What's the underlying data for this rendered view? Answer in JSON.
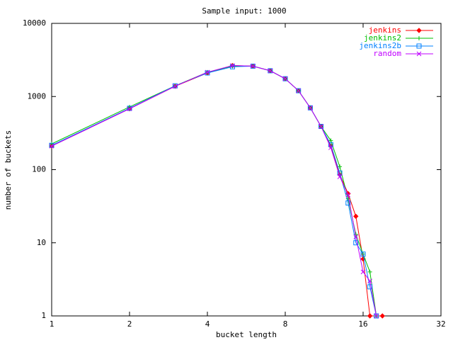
{
  "chart_data": {
    "type": "line",
    "title": "Sample input: 1000",
    "x_label": "bucket length",
    "y_label": "number of buckets",
    "xscale": "log",
    "yscale": "log",
    "xlim": [
      1,
      32
    ],
    "xticks": [
      1,
      2,
      4,
      8,
      16,
      32
    ],
    "ylim": [
      1,
      10000
    ],
    "yticks": [
      1,
      10,
      100,
      1000,
      10000
    ],
    "legend": "top-right",
    "series": [
      {
        "name": "jenkins",
        "color": "#ff0000",
        "marker": "diamond",
        "x": [
          1,
          2,
          3,
          4,
          5,
          6,
          7,
          8,
          9,
          10,
          11,
          12,
          13,
          14,
          15,
          16,
          17,
          19
        ],
        "values": [
          210,
          680,
          1380,
          2100,
          2650,
          2600,
          2250,
          1750,
          1200,
          700,
          390,
          210,
          85,
          47,
          23,
          6,
          1,
          1
        ]
      },
      {
        "name": "jenkins2",
        "color": "#00c000",
        "marker": "plus",
        "x": [
          1,
          2,
          3,
          4,
          5,
          6,
          7,
          8,
          9,
          10,
          11,
          12,
          13,
          14,
          15,
          16,
          17,
          18
        ],
        "values": [
          225,
          720,
          1400,
          2150,
          2600,
          2600,
          2250,
          1750,
          1200,
          700,
          390,
          250,
          110,
          40,
          13,
          7,
          4,
          1
        ]
      },
      {
        "name": "jenkins2b",
        "color": "#0080ff",
        "marker": "square",
        "x": [
          1,
          2,
          3,
          4,
          5,
          6,
          7,
          8,
          9,
          10,
          11,
          12,
          13,
          14,
          15,
          16,
          17,
          18
        ],
        "values": [
          215,
          690,
          1400,
          2100,
          2550,
          2600,
          2250,
          1750,
          1200,
          700,
          390,
          220,
          90,
          35,
          10,
          7,
          2.5,
          1
        ]
      },
      {
        "name": "random",
        "color": "#c000ff",
        "marker": "cross",
        "x": [
          1,
          2,
          3,
          4,
          5,
          6,
          7,
          8,
          9,
          10,
          11,
          12,
          13,
          14,
          15,
          16,
          17,
          18
        ],
        "values": [
          210,
          680,
          1380,
          2150,
          2650,
          2600,
          2250,
          1750,
          1200,
          700,
          390,
          200,
          80,
          45,
          12,
          4,
          3,
          1
        ]
      }
    ]
  }
}
